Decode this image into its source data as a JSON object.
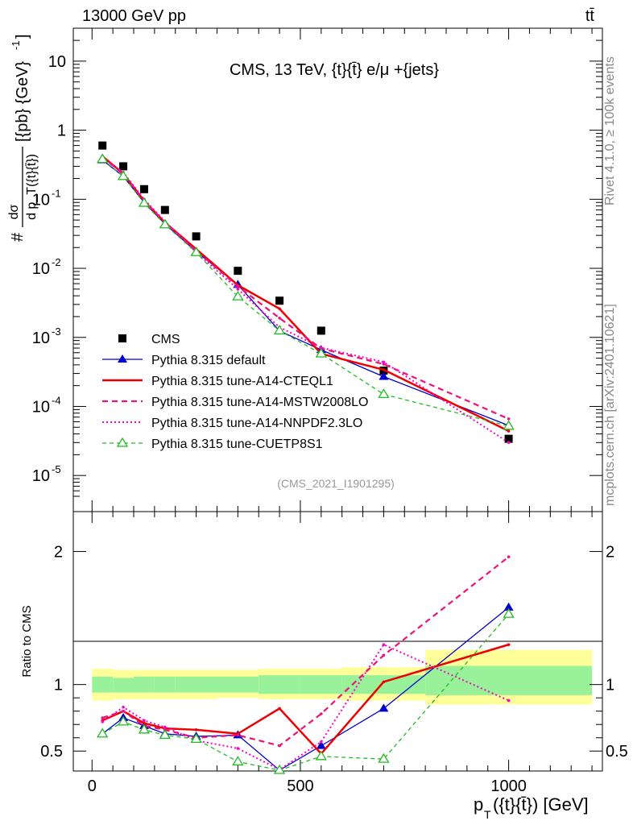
{
  "header": {
    "energy_label": "13000 GeV pp",
    "process_label": "tt̄"
  },
  "side_labels": {
    "rivet": "Rivet 4.1.0, ≥ 100k events",
    "mcplots": "mcplots.cern.ch [arXiv:2401.10621]"
  },
  "chart_data": [
    {
      "type": "line",
      "panel": "main",
      "title": "CMS, 13 TeV, {t}{t̄} e/μ +{jets}",
      "ylabel": "#dσ/dp_T({t}{t̄}) [{pb} {GeV}^-1]",
      "ylabel_parts": {
        "hash": "#",
        "numerator": "dσ",
        "denominator": "d p_T({t}{t̄})",
        "units": "[{pb} {GeV}",
        "exponent": "-1",
        "close": "]"
      },
      "yscale": "log",
      "ylim": [
        3e-06,
        30
      ],
      "xlim": [
        -45,
        1225
      ],
      "yticks": [
        {
          "value": 1e-05,
          "label": "10",
          "exp": "-5"
        },
        {
          "value": 0.0001,
          "label": "10",
          "exp": "-4"
        },
        {
          "value": 0.001,
          "label": "10",
          "exp": "-3"
        },
        {
          "value": 0.01,
          "label": "10",
          "exp": "-2"
        },
        {
          "value": 0.1,
          "label": "10",
          "exp": "-1"
        },
        {
          "value": 1,
          "label": "1",
          "exp": ""
        },
        {
          "value": 10,
          "label": "10",
          "exp": ""
        }
      ],
      "legend_position": "lower-left",
      "watermark": "(CMS_2021_I1901295)",
      "x": [
        25,
        75,
        125,
        175,
        250,
        350,
        450,
        550,
        700,
        1000
      ],
      "series": [
        {
          "name": "CMS",
          "style": "data",
          "color": "#000000",
          "values": [
            0.6,
            0.3,
            0.14,
            0.07,
            0.029,
            0.0092,
            0.0034,
            0.00125,
            0.00033,
            3.4e-05
          ]
        },
        {
          "name": "Pythia 8.315 default",
          "style": "solid-triangle",
          "color": "#0000cc",
          "values": [
            0.37,
            0.215,
            0.09,
            0.044,
            0.0175,
            0.0058,
            0.00124,
            0.00066,
            0.00027,
            5.3e-05
          ]
        },
        {
          "name": "Pythia 8.315 tune-A14-CTEQL1",
          "style": "solid-thick",
          "color": "#ee0000",
          "values": [
            0.42,
            0.235,
            0.095,
            0.046,
            0.019,
            0.0057,
            0.0026,
            0.00058,
            0.00034,
            4.4e-05
          ]
        },
        {
          "name": "Pythia 8.315 tune-A14-MSTW2008LO",
          "style": "dashed",
          "color": "#ee1177",
          "values": [
            0.41,
            0.23,
            0.095,
            0.046,
            0.018,
            0.0055,
            0.0019,
            0.00069,
            0.00041,
            6.6e-05
          ]
        },
        {
          "name": "Pythia 8.315 tune-A14-NNPDF2.3LO",
          "style": "dotted",
          "color": "#ff00cc",
          "values": [
            0.4,
            0.245,
            0.1,
            0.048,
            0.017,
            0.005,
            0.0014,
            0.00071,
            0.00044,
            3e-05
          ]
        },
        {
          "name": "Pythia 8.315 tune-CUETP8S1",
          "style": "dashed-open-triangle",
          "color": "#22bb22",
          "values": [
            0.38,
            0.215,
            0.088,
            0.043,
            0.017,
            0.0039,
            0.00125,
            0.00058,
            0.00015,
            5.2e-05
          ]
        }
      ]
    },
    {
      "type": "line",
      "panel": "ratio",
      "ylabel": "Ratio to CMS",
      "xlabel_parts": {
        "p": "p",
        "sub": "T",
        "rest": "({t}{t̄}) [GeV]"
      },
      "ylim": [
        0.35,
        2.3
      ],
      "xlim": [
        -45,
        1225
      ],
      "yticks": [
        0.5,
        1,
        2
      ],
      "xticks": [
        0,
        500,
        1000
      ],
      "bins": [
        [
          0,
          50
        ],
        [
          50,
          100
        ],
        [
          100,
          150
        ],
        [
          150,
          200
        ],
        [
          200,
          300
        ],
        [
          300,
          400
        ],
        [
          400,
          500
        ],
        [
          500,
          600
        ],
        [
          600,
          800
        ],
        [
          800,
          1200
        ]
      ],
      "band_yellow": [
        [
          0.88,
          1.12
        ],
        [
          0.89,
          1.11
        ],
        [
          0.89,
          1.11
        ],
        [
          0.89,
          1.11
        ],
        [
          0.89,
          1.11
        ],
        [
          0.9,
          1.11
        ],
        [
          0.89,
          1.12
        ],
        [
          0.89,
          1.12
        ],
        [
          0.88,
          1.13
        ],
        [
          0.85,
          1.26
        ]
      ],
      "band_green": [
        [
          0.94,
          1.06
        ],
        [
          0.94,
          1.05
        ],
        [
          0.94,
          1.06
        ],
        [
          0.94,
          1.06
        ],
        [
          0.94,
          1.06
        ],
        [
          0.94,
          1.06
        ],
        [
          0.93,
          1.07
        ],
        [
          0.93,
          1.07
        ],
        [
          0.93,
          1.07
        ],
        [
          0.92,
          1.14
        ]
      ],
      "x": [
        25,
        75,
        125,
        175,
        250,
        350,
        450,
        550,
        700,
        1000
      ],
      "series": [
        {
          "name": "Pythia 8.315 default",
          "style": "solid-triangle",
          "color": "#0000cc",
          "values": [
            0.63,
            0.75,
            0.69,
            0.63,
            0.61,
            0.62,
            0.3,
            0.54,
            0.82,
            1.58
          ]
        },
        {
          "name": "Pythia 8.315 tune-A14-CTEQL1",
          "style": "solid-thick",
          "color": "#ee0000",
          "values": [
            0.73,
            0.8,
            0.71,
            0.67,
            0.66,
            0.63,
            0.82,
            0.48,
            1.02,
            1.3
          ]
        },
        {
          "name": "Pythia 8.315 tune-A14-MSTW2008LO",
          "style": "dashed",
          "color": "#ee1177",
          "values": [
            0.75,
            0.8,
            0.69,
            0.66,
            0.6,
            0.62,
            0.54,
            0.78,
            1.22,
            1.96
          ]
        },
        {
          "name": "Pythia 8.315 tune-A14-NNPDF2.3LO",
          "style": "dotted",
          "color": "#ff00cc",
          "values": [
            0.72,
            0.83,
            0.73,
            0.68,
            0.58,
            0.52,
            0.36,
            0.57,
            1.3,
            0.88
          ]
        },
        {
          "name": "Pythia 8.315 tune-CUETP8S1",
          "style": "dashed-open-triangle",
          "color": "#22bb22",
          "values": [
            0.63,
            0.72,
            0.66,
            0.62,
            0.59,
            0.42,
            0.33,
            0.46,
            0.44,
            1.53
          ]
        }
      ]
    }
  ]
}
